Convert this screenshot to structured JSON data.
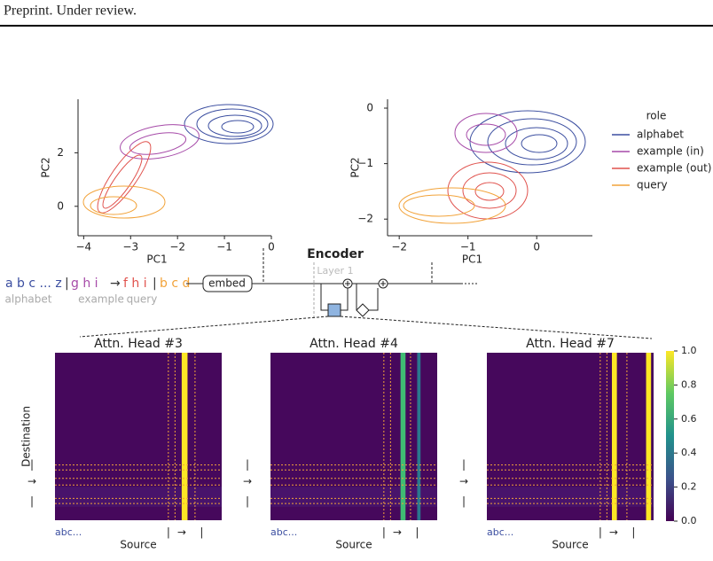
{
  "header": {
    "text": "Preprint. Under review."
  },
  "chart_data": [
    {
      "type": "contour",
      "xlabel": "PC1",
      "ylabel": "PC2",
      "xlim": [
        -4.12,
        0
      ],
      "ylim": [
        -1.1,
        4
      ],
      "xticks": [
        {
          "value": -4,
          "label": "−4"
        },
        {
          "value": -3,
          "label": "−3"
        },
        {
          "value": -2,
          "label": "−2"
        },
        {
          "value": -1,
          "label": "−1"
        },
        0
      ],
      "yticks": [
        0,
        2
      ]
    },
    {
      "type": "contour",
      "xlabel": "PC1",
      "ylabel": "PC2",
      "xlim": [
        -2.17,
        0.81
      ],
      "ylim": [
        -2.3,
        0.16
      ],
      "xticks": [
        {
          "value": -2,
          "label": "−2"
        },
        {
          "value": -1,
          "label": "−1"
        },
        0
      ],
      "yticks": [
        0,
        {
          "value": -1,
          "label": "−1"
        },
        {
          "value": -2,
          "label": "−2"
        }
      ],
      "legend_title": "role",
      "series": [
        {
          "name": "alphabet",
          "color": "#3b4ea0"
        },
        {
          "name": "example (in)",
          "color": "#a64aa8"
        },
        {
          "name": "example (out)",
          "color": "#e0524d"
        },
        {
          "name": "query",
          "color": "#f2a33a"
        }
      ]
    },
    {
      "type": "heatmap",
      "title": "Attn. Head #3",
      "xlabel": "Source",
      "ylabel": "Destination"
    },
    {
      "type": "heatmap",
      "title": "Attn. Head #4",
      "xlabel": "Source"
    },
    {
      "type": "heatmap",
      "title": "Attn. Head #7",
      "xlabel": "Source",
      "clim": [
        0,
        1
      ],
      "cticks": [
        {
          "value": 0,
          "label": "0.0"
        },
        0.2,
        0.4,
        0.6,
        0.8,
        {
          "value": 1,
          "label": "1.0"
        }
      ]
    }
  ],
  "diagram": {
    "sequence": [
      "a b c ... z",
      "|",
      "g h i",
      "→",
      "f h i",
      "|",
      "b c d"
    ],
    "segment_labels": [
      "alphabet",
      "example",
      "query"
    ],
    "embed": "embed",
    "encoder": "Encoder",
    "layer": "Layer 1"
  },
  "markers": {
    "alphabet": "abc...",
    "separator": "|",
    "arrow": "→"
  }
}
